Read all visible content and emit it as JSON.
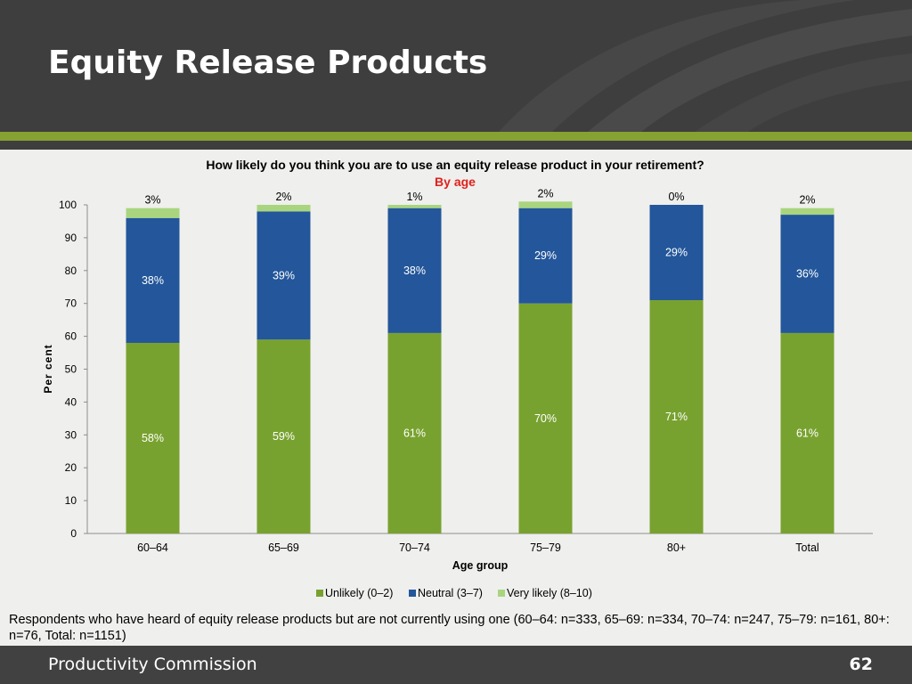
{
  "slide": {
    "title": "Equity Release Products",
    "footer_left": "Productivity Commission",
    "page_number": "62",
    "note": "Respondents who have heard of equity release products but are not currently using one (60–64: n=333, 65–69: n=334, 70–74: n=247, 75–79: n=161, 80+: n=76, Total: n=1151)"
  },
  "chart_data": {
    "type": "bar",
    "stacked": true,
    "title": "How likely do you think you are to use an equity release product in your retirement?",
    "subtitle": "By age",
    "xlabel": "Age group",
    "ylabel": "Per cent",
    "ylim": [
      0,
      100
    ],
    "yticks": [
      0,
      10,
      20,
      30,
      40,
      50,
      60,
      70,
      80,
      90,
      100
    ],
    "grid": false,
    "legend": "bottom",
    "categories": [
      "60–64",
      "65–69",
      "70–74",
      "75–79",
      "80+",
      "Total"
    ],
    "series": [
      {
        "name": "Unlikely (0–2)",
        "color": "#78a22f",
        "values": [
          58,
          59,
          61,
          70,
          71,
          61
        ],
        "labels": [
          "58%",
          "59%",
          "61%",
          "70%",
          "71%",
          "61%"
        ]
      },
      {
        "name": "Neutral (3–7)",
        "color": "#23569a",
        "values": [
          38,
          39,
          38,
          29,
          29,
          36
        ],
        "labels": [
          "38%",
          "39%",
          "38%",
          "29%",
          "29%",
          "36%"
        ]
      },
      {
        "name": "Very likely (8–10)",
        "color": "#a9d57f",
        "values": [
          3,
          2,
          1,
          2,
          0,
          2
        ],
        "labels": [
          "3%",
          "2%",
          "1%",
          "2%",
          "0%",
          "2%"
        ]
      }
    ]
  },
  "colors": {
    "header_bg": "#3e3e3e",
    "accent_green": "#86a232",
    "subtitle_red": "#e0211d"
  }
}
